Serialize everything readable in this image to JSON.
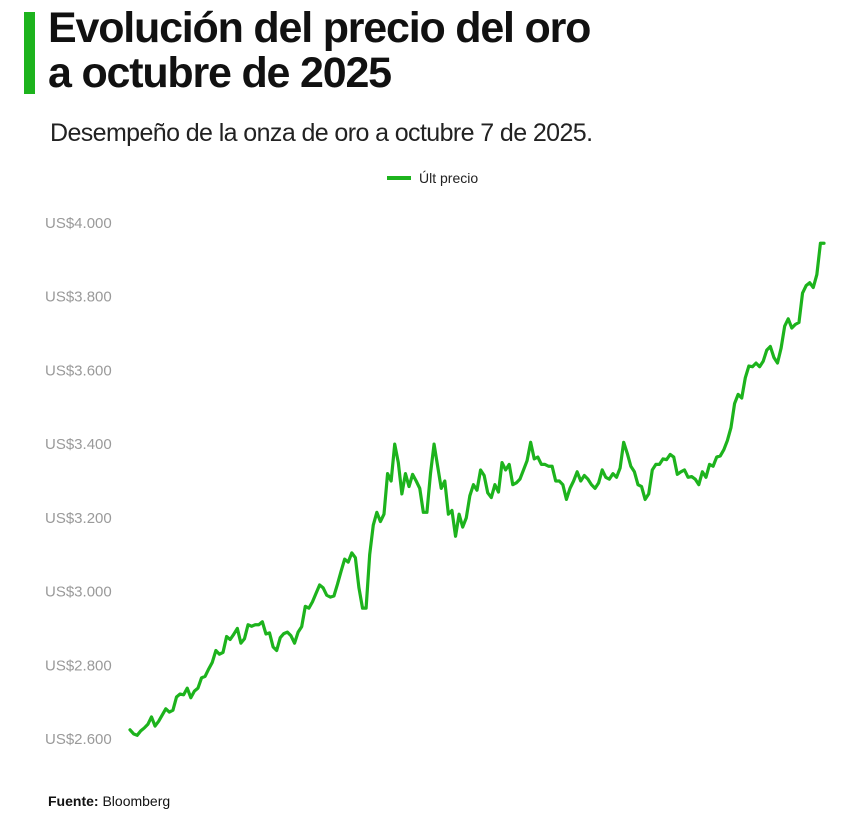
{
  "title": "Evolución del precio del oro a octubre de 2025",
  "subtitle": "Desempeño de la onza de oro a octubre 7 de 2025.",
  "legend_label": "Últ precio",
  "source_label": "Fuente:",
  "source_value": "Bloomberg",
  "colors": {
    "accent": "#1db31d",
    "axis_text": "#9a9a9a"
  },
  "chart_data": {
    "type": "line",
    "title": "Evolución del precio del oro a octubre de 2025",
    "xlabel": "",
    "ylabel": "",
    "ylim": [
      2600,
      4000
    ],
    "yticks": [
      2600,
      2800,
      3000,
      3200,
      3400,
      3600,
      3800,
      4000
    ],
    "ytick_labels": [
      "US$2.600",
      "US$2.800",
      "US$3.000",
      "US$3.200",
      "US$3.400",
      "US$3.600",
      "US$3.800",
      "US$4.000"
    ],
    "grid": false,
    "legend_position": "top-center",
    "series": [
      {
        "name": "Últ precio",
        "color": "#1db31d",
        "values": [
          2625,
          2614,
          2610,
          2622,
          2630,
          2640,
          2660,
          2635,
          2648,
          2665,
          2682,
          2673,
          2678,
          2714,
          2722,
          2720,
          2738,
          2712,
          2730,
          2738,
          2766,
          2770,
          2790,
          2808,
          2840,
          2830,
          2835,
          2878,
          2870,
          2884,
          2900,
          2860,
          2872,
          2910,
          2906,
          2910,
          2910,
          2918,
          2885,
          2888,
          2850,
          2840,
          2875,
          2886,
          2890,
          2880,
          2860,
          2890,
          2905,
          2960,
          2955,
          2972,
          2995,
          3018,
          3010,
          2990,
          2985,
          2988,
          3020,
          3055,
          3088,
          3080,
          3105,
          3092,
          3010,
          2955,
          2955,
          3100,
          3180,
          3215,
          3190,
          3210,
          3320,
          3300,
          3400,
          3350,
          3265,
          3320,
          3285,
          3318,
          3300,
          3280,
          3215,
          3215,
          3320,
          3400,
          3340,
          3280,
          3300,
          3210,
          3220,
          3150,
          3210,
          3175,
          3200,
          3260,
          3290,
          3275,
          3330,
          3315,
          3268,
          3255,
          3290,
          3270,
          3350,
          3330,
          3345,
          3290,
          3295,
          3305,
          3330,
          3355,
          3405,
          3360,
          3365,
          3345,
          3345,
          3340,
          3340,
          3300,
          3300,
          3290,
          3250,
          3280,
          3300,
          3325,
          3300,
          3315,
          3305,
          3290,
          3280,
          3295,
          3330,
          3310,
          3305,
          3320,
          3310,
          3335,
          3405,
          3375,
          3340,
          3325,
          3290,
          3285,
          3250,
          3265,
          3330,
          3345,
          3345,
          3360,
          3358,
          3372,
          3365,
          3318,
          3325,
          3330,
          3310,
          3312,
          3305,
          3290,
          3325,
          3310,
          3345,
          3340,
          3365,
          3368,
          3385,
          3410,
          3445,
          3510,
          3535,
          3525,
          3580,
          3612,
          3610,
          3620,
          3610,
          3625,
          3655,
          3665,
          3635,
          3620,
          3660,
          3720,
          3740,
          3715,
          3725,
          3730,
          3810,
          3830,
          3838,
          3825,
          3860,
          3945,
          3945
        ]
      }
    ]
  }
}
